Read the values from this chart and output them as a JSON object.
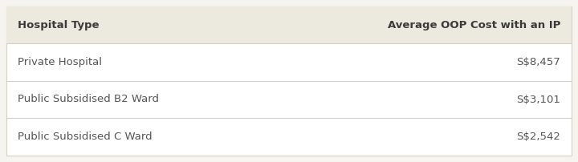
{
  "header": [
    "Hospital Type",
    "Average OOP Cost with an IP"
  ],
  "rows": [
    [
      "Private Hospital",
      "S$8,457"
    ],
    [
      "Public Subsidised B2 Ward",
      "S$3,101"
    ],
    [
      "Public Subsidised C Ward",
      "S$2,542"
    ]
  ],
  "header_bg": "#eceadf",
  "row_bg": "#ffffff",
  "outer_bg": "#f5f4ef",
  "border_color": "#d4d0c8",
  "header_text_color": "#3a3a3a",
  "row_text_color": "#555555",
  "header_fontsize": 9.5,
  "row_fontsize": 9.5,
  "fig_width": 7.2,
  "fig_height": 2.02,
  "dpi": 100
}
